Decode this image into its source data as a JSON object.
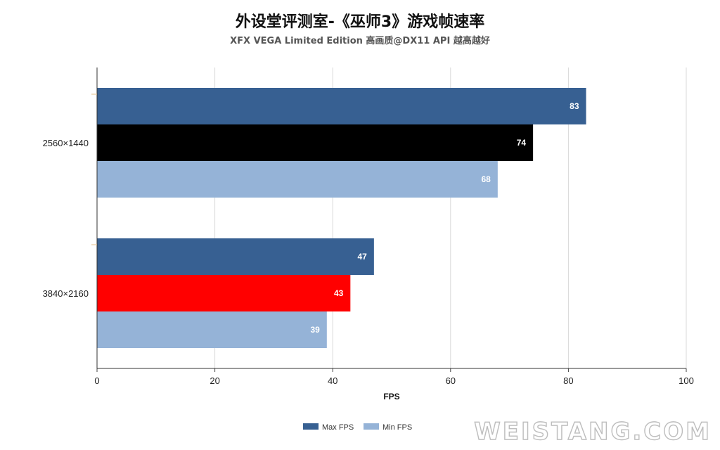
{
  "chart_data": {
    "type": "bar",
    "orientation": "horizontal",
    "title": "外设堂评测室-《巫师3》游戏帧速率",
    "subtitle": "XFX VEGA Limited Edition 高画质@DX11 API 越高越好",
    "categories": [
      "2560×1440",
      "3840×2160"
    ],
    "series": [
      {
        "name": "Max FPS",
        "values": [
          83,
          47
        ]
      },
      {
        "name": "",
        "values": [
          74,
          43
        ]
      },
      {
        "name": "Min FPS",
        "values": [
          68,
          39
        ]
      }
    ],
    "bar_colors": [
      [
        "#376092",
        "#376092"
      ],
      [
        "#000000",
        "#ff0000"
      ],
      [
        "#95b3d7",
        "#95b3d7"
      ]
    ],
    "xlabel": "FPS",
    "ylabel": "",
    "xlim": [
      0,
      100
    ],
    "x_ticks": [
      0,
      20,
      40,
      60,
      80,
      100
    ],
    "grid": true,
    "legend_position": "bottom",
    "legend": [
      {
        "label": "Max FPS",
        "color": "#376092"
      },
      {
        "label": "Min FPS",
        "color": "#95b3d7"
      }
    ]
  },
  "watermark": "WEISTANG.COM"
}
